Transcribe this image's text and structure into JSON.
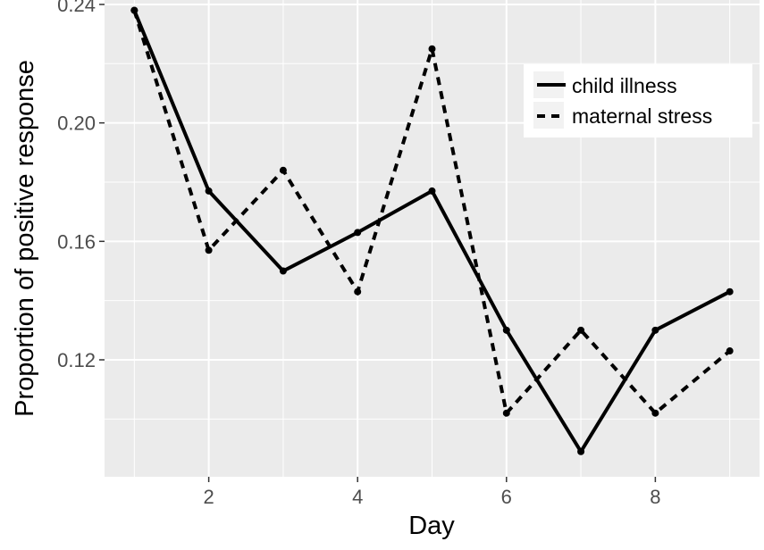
{
  "chart_data": {
    "type": "line",
    "title": "",
    "xlabel": "Day",
    "ylabel": "Proportion of positive response",
    "x": [
      1,
      2,
      3,
      4,
      5,
      6,
      7,
      8,
      9
    ],
    "xlim": [
      0.6,
      9.4
    ],
    "ylim": [
      0.0805,
      0.2415
    ],
    "x_ticks": [
      2,
      4,
      6,
      8
    ],
    "y_ticks": [
      0.12,
      0.16,
      0.2,
      0.24
    ],
    "x_tick_labels": [
      "2",
      "4",
      "6",
      "8"
    ],
    "y_tick_labels": [
      "0.12",
      "0.16",
      "0.20",
      "0.24"
    ],
    "grid": true,
    "legend_position": "top-right",
    "background": "#ebebeb",
    "gridline_color": "#ffffff",
    "series": [
      {
        "name": "child illness",
        "line_style": "solid",
        "color": "#000000",
        "values": [
          0.238,
          0.177,
          0.15,
          0.163,
          0.177,
          0.13,
          0.089,
          0.13,
          0.143
        ]
      },
      {
        "name": "maternal stress",
        "line_style": "dashed",
        "color": "#000000",
        "values": [
          0.238,
          0.157,
          0.184,
          0.143,
          0.225,
          0.102,
          0.13,
          0.102,
          0.123
        ]
      }
    ]
  }
}
